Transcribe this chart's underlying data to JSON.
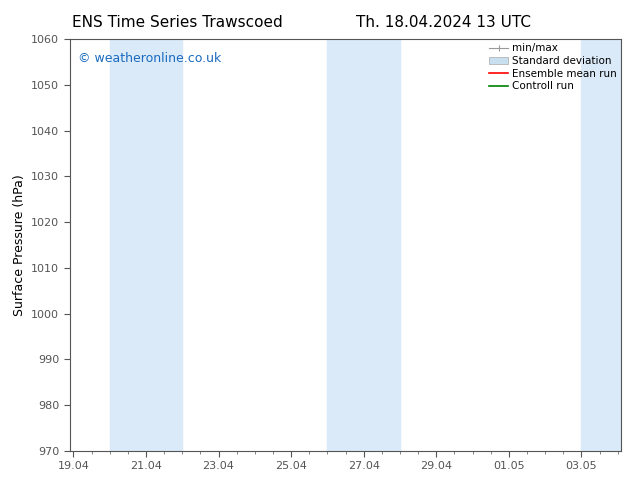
{
  "title_left": "ENS Time Series Trawscoed",
  "title_right": "Th. 18.04.2024 13 UTC",
  "ylabel": "Surface Pressure (hPa)",
  "ylim": [
    970,
    1060
  ],
  "yticks": [
    970,
    980,
    990,
    1000,
    1010,
    1020,
    1030,
    1040,
    1050,
    1060
  ],
  "xtick_labels": [
    "19.04",
    "21.04",
    "23.04",
    "25.04",
    "27.04",
    "29.04",
    "01.05",
    "03.05"
  ],
  "xtick_positions": [
    0,
    2,
    4,
    6,
    8,
    10,
    12,
    14
  ],
  "xlim": [
    -0.1,
    15.1
  ],
  "shaded_bands": [
    {
      "xmin": 1.0,
      "xmax": 3.0,
      "color": "#daeaf8"
    },
    {
      "xmin": 7.0,
      "xmax": 9.0,
      "color": "#daeaf8"
    },
    {
      "xmin": 14.0,
      "xmax": 15.1,
      "color": "#daeaf8"
    }
  ],
  "watermark": "© weatheronline.co.uk",
  "watermark_color": "#1a6bbf",
  "bg_color": "#ffffff",
  "plot_bg_color": "#ffffff",
  "spine_color": "#555555",
  "tick_color": "#555555",
  "label_color": "#000000",
  "legend_items": [
    {
      "label": "min/max",
      "color": "#999999",
      "style": "errbar"
    },
    {
      "label": "Standard deviation",
      "color": "#c8dff0",
      "style": "box"
    },
    {
      "label": "Ensemble mean run",
      "color": "#ff0000",
      "style": "line"
    },
    {
      "label": "Controll run",
      "color": "#008000",
      "style": "line"
    }
  ],
  "title_fontsize": 11,
  "axis_label_fontsize": 9,
  "tick_fontsize": 8,
  "legend_fontsize": 7.5,
  "watermark_fontsize": 9
}
